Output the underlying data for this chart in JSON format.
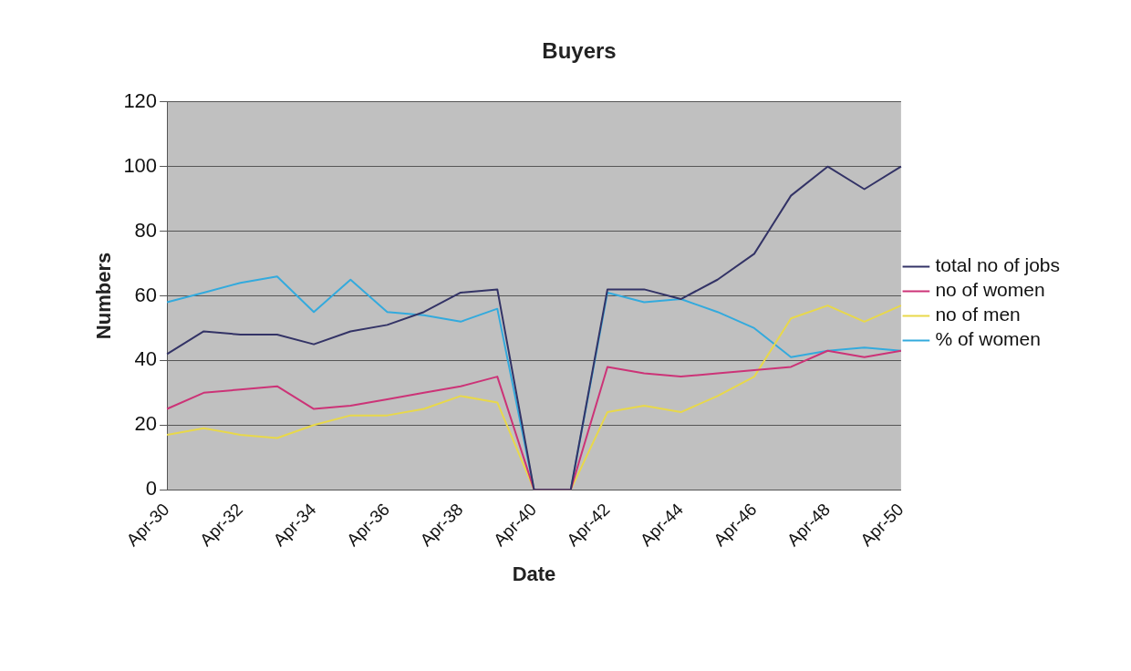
{
  "chart_data": {
    "type": "line",
    "title": "Buyers",
    "xlabel": "Date",
    "ylabel": "Numbers",
    "categories": [
      "Apr-30",
      null,
      "Apr-32",
      null,
      "Apr-34",
      null,
      "Apr-36",
      null,
      "Apr-38",
      null,
      "Apr-40",
      null,
      "Apr-42",
      null,
      "Apr-44",
      null,
      "Apr-46",
      null,
      "Apr-48",
      null,
      "Apr-50"
    ],
    "series": [
      {
        "name": "total no of jobs",
        "color": "#333366",
        "values": [
          42,
          49,
          48,
          48,
          45,
          49,
          51,
          55,
          61,
          62,
          0,
          0,
          62,
          62,
          59,
          65,
          73,
          91,
          100,
          93,
          100
        ]
      },
      {
        "name": "no of women",
        "color": "#cc3377",
        "values": [
          25,
          30,
          31,
          32,
          25,
          26,
          28,
          30,
          32,
          35,
          0,
          0,
          38,
          36,
          35,
          36,
          37,
          38,
          43,
          41,
          43
        ]
      },
      {
        "name": "no of men",
        "color": "#e8d84a",
        "values": [
          17,
          19,
          17,
          16,
          20,
          23,
          23,
          25,
          29,
          27,
          0,
          0,
          24,
          26,
          24,
          29,
          35,
          53,
          57,
          52,
          57
        ]
      },
      {
        "name": "% of women",
        "color": "#33aadd",
        "values": [
          58,
          61,
          64,
          66,
          55,
          65,
          55,
          54,
          52,
          56,
          0,
          0,
          61,
          58,
          59,
          55,
          50,
          41,
          43,
          44,
          43
        ]
      }
    ],
    "ylim": [
      0,
      120
    ],
    "yticks": [
      0,
      20,
      40,
      60,
      80,
      100,
      120
    ],
    "grid": "y",
    "legend": "right",
    "marker": "none",
    "line_style": "solid"
  }
}
